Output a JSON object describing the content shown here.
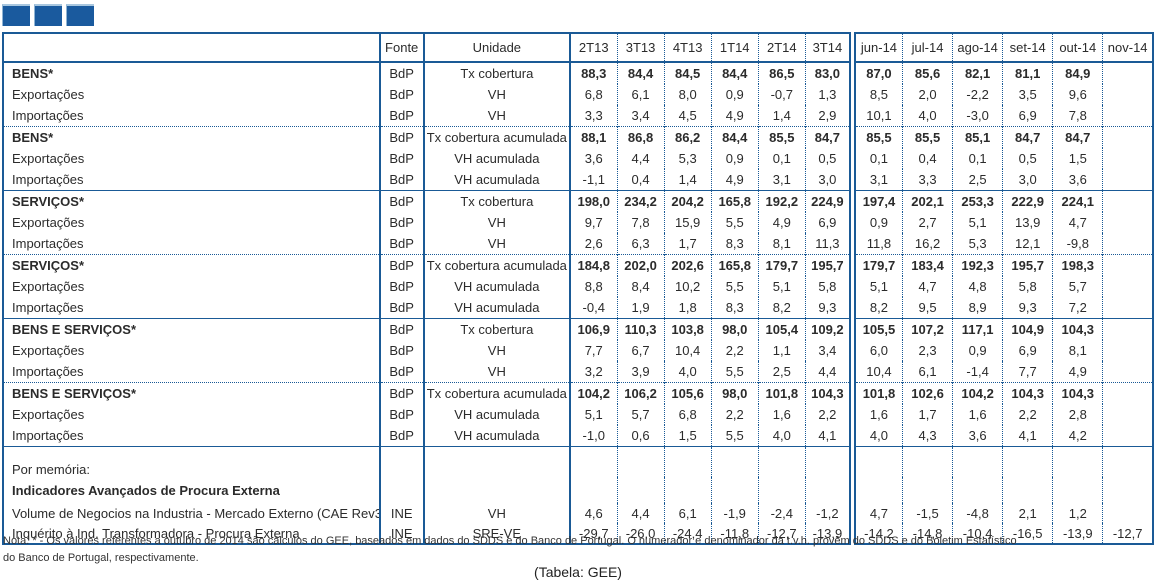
{
  "table": {
    "columns": [
      "Fonte",
      "Unidade",
      "2T13",
      "3T13",
      "4T13",
      "1T14",
      "2T14",
      "3T14",
      "jun-14",
      "jul-14",
      "ago-14",
      "set-14",
      "out-14",
      "nov-14"
    ],
    "groups": [
      {
        "sep": "none",
        "rows": [
          {
            "label": "BENS*",
            "bold": true,
            "fonte": "BdP",
            "unidade": "Tx cobertura",
            "values": [
              "88,3",
              "84,4",
              "84,5",
              "84,4",
              "86,5",
              "83,0",
              "87,0",
              "85,6",
              "82,1",
              "81,1",
              "84,9",
              ""
            ]
          },
          {
            "label": "Exportações",
            "fonte": "BdP",
            "unidade": "VH",
            "values": [
              "6,8",
              "6,1",
              "8,0",
              "0,9",
              "-0,7",
              "1,3",
              "8,5",
              "2,0",
              "-2,2",
              "3,5",
              "9,6",
              ""
            ]
          },
          {
            "label": "Importações",
            "fonte": "BdP",
            "unidade": "VH",
            "values": [
              "3,3",
              "3,4",
              "4,5",
              "4,9",
              "1,4",
              "2,9",
              "10,1",
              "4,0",
              "-3,0",
              "6,9",
              "7,8",
              ""
            ]
          }
        ]
      },
      {
        "sep": "dotted",
        "rows": [
          {
            "label": "BENS*",
            "bold": true,
            "fonte": "BdP",
            "unidade": "Tx cobertura acumulada",
            "values": [
              "88,1",
              "86,8",
              "86,2",
              "84,4",
              "85,5",
              "84,7",
              "85,5",
              "85,5",
              "85,1",
              "84,7",
              "84,7",
              ""
            ]
          },
          {
            "label": "Exportações",
            "fonte": "BdP",
            "unidade": "VH acumulada",
            "values": [
              "3,6",
              "4,4",
              "5,3",
              "0,9",
              "0,1",
              "0,5",
              "0,1",
              "0,4",
              "0,1",
              "0,5",
              "1,5",
              ""
            ]
          },
          {
            "label": "Importações",
            "fonte": "BdP",
            "unidade": "VH acumulada",
            "values": [
              "-1,1",
              "0,4",
              "1,4",
              "4,9",
              "3,1",
              "3,0",
              "3,1",
              "3,3",
              "2,5",
              "3,0",
              "3,6",
              ""
            ]
          }
        ]
      },
      {
        "sep": "solid",
        "rows": [
          {
            "label": "SERVIÇOS*",
            "bold": true,
            "fonte": "BdP",
            "unidade": "Tx cobertura",
            "values": [
              "198,0",
              "234,2",
              "204,2",
              "165,8",
              "192,2",
              "224,9",
              "197,4",
              "202,1",
              "253,3",
              "222,9",
              "224,1",
              ""
            ]
          },
          {
            "label": "Exportações",
            "fonte": "BdP",
            "unidade": "VH",
            "values": [
              "9,7",
              "7,8",
              "15,9",
              "5,5",
              "4,9",
              "6,9",
              "0,9",
              "2,7",
              "5,1",
              "13,9",
              "4,7",
              ""
            ]
          },
          {
            "label": "Importações",
            "fonte": "BdP",
            "unidade": "VH",
            "values": [
              "2,6",
              "6,3",
              "1,7",
              "8,3",
              "8,1",
              "11,3",
              "11,8",
              "16,2",
              "5,3",
              "12,1",
              "-9,8",
              ""
            ]
          }
        ]
      },
      {
        "sep": "dotted",
        "rows": [
          {
            "label": "SERVIÇOS*",
            "bold": true,
            "fonte": "BdP",
            "unidade": "Tx cobertura acumulada",
            "values": [
              "184,8",
              "202,0",
              "202,6",
              "165,8",
              "179,7",
              "195,7",
              "179,7",
              "183,4",
              "192,3",
              "195,7",
              "198,3",
              ""
            ]
          },
          {
            "label": "Exportações",
            "fonte": "BdP",
            "unidade": "VH acumulada",
            "values": [
              "8,8",
              "8,4",
              "10,2",
              "5,5",
              "5,1",
              "5,8",
              "5,1",
              "4,7",
              "4,8",
              "5,8",
              "5,7",
              ""
            ]
          },
          {
            "label": "Importações",
            "fonte": "BdP",
            "unidade": "VH acumulada",
            "values": [
              "-0,4",
              "1,9",
              "1,8",
              "8,3",
              "8,2",
              "9,3",
              "8,2",
              "9,5",
              "8,9",
              "9,3",
              "7,2",
              ""
            ]
          }
        ]
      },
      {
        "sep": "solid",
        "rows": [
          {
            "label": "BENS E SERVIÇOS*",
            "bold": true,
            "fonte": "BdP",
            "unidade": "Tx cobertura",
            "values": [
              "106,9",
              "110,3",
              "103,8",
              "98,0",
              "105,4",
              "109,2",
              "105,5",
              "107,2",
              "117,1",
              "104,9",
              "104,3",
              ""
            ]
          },
          {
            "label": "Exportações",
            "fonte": "BdP",
            "unidade": "VH",
            "values": [
              "7,7",
              "6,7",
              "10,4",
              "2,2",
              "1,1",
              "3,4",
              "6,0",
              "2,3",
              "0,9",
              "6,9",
              "8,1",
              ""
            ]
          },
          {
            "label": "Importações",
            "fonte": "BdP",
            "unidade": "VH",
            "values": [
              "3,2",
              "3,9",
              "4,0",
              "5,5",
              "2,5",
              "4,4",
              "10,4",
              "6,1",
              "-1,4",
              "7,7",
              "4,9",
              ""
            ]
          }
        ]
      },
      {
        "sep": "dotted",
        "rows": [
          {
            "label": "BENS E SERVIÇOS*",
            "bold": true,
            "fonte": "BdP",
            "unidade": "Tx cobertura acumulada",
            "values": [
              "104,2",
              "106,2",
              "105,6",
              "98,0",
              "101,8",
              "104,3",
              "101,8",
              "102,6",
              "104,2",
              "104,3",
              "104,3",
              ""
            ]
          },
          {
            "label": "Exportações",
            "fonte": "BdP",
            "unidade": "VH acumulada",
            "values": [
              "5,1",
              "5,7",
              "6,8",
              "2,2",
              "1,6",
              "2,2",
              "1,6",
              "1,7",
              "1,6",
              "2,2",
              "2,8",
              ""
            ]
          },
          {
            "label": "Importações",
            "fonte": "BdP",
            "unidade": "VH acumulada",
            "values": [
              "-1,0",
              "0,6",
              "1,5",
              "5,5",
              "4,0",
              "4,1",
              "4,0",
              "4,3",
              "3,6",
              "4,1",
              "4,2",
              ""
            ]
          }
        ]
      },
      {
        "sep": "solid",
        "memo": true,
        "rows": [
          {
            "label": "Por memória:",
            "fonte": "",
            "unidade": "",
            "values": [
              "",
              "",
              "",
              "",
              "",
              "",
              "",
              "",
              "",
              "",
              "",
              ""
            ]
          },
          {
            "label": "Indicadores Avançados de Procura Externa",
            "bold": true,
            "fonte": "",
            "unidade": "",
            "values": [
              "",
              "",
              "",
              "",
              "",
              "",
              "",
              "",
              "",
              "",
              "",
              ""
            ]
          },
          {
            "label": "Volume de Negocios na Industria - Mercado Externo (CAE Rev3",
            "fonte": "INE",
            "unidade": "VH",
            "values": [
              "4,6",
              "4,4",
              "6,1",
              "-1,9",
              "-2,4",
              "-1,2",
              "4,7",
              "-1,5",
              "-4,8",
              "2,1",
              "1,2",
              ""
            ]
          },
          {
            "label": "Inquérito à Ind. Transformadora - Procura Externa",
            "fonte": "INE",
            "unidade": "SRE-VE",
            "values": [
              "-29,7",
              "-26,0",
              "-24,4",
              "-11,8",
              "-12,7",
              "-13,9",
              "-14,2",
              "-14,8",
              "-10,4",
              "-16,5",
              "-13,9",
              "-12,7"
            ]
          }
        ]
      }
    ]
  },
  "note": {
    "line1": "Nota: * - Os valores referentes a outubro de 2014 são cálculos do GEE, baseados em dados do SDDS e do Banco de Portugal. O numerador e denominador da t.v.h. provêm do SDDS e do Boletim Estatístico",
    "line2": "do Banco de Portugal, respectivamente."
  },
  "caption": "(Tabela: GEE)",
  "colors": {
    "border_blue": "#1A5A96",
    "square_blue": "#1A5A9E",
    "text": "#2B2B2B"
  }
}
